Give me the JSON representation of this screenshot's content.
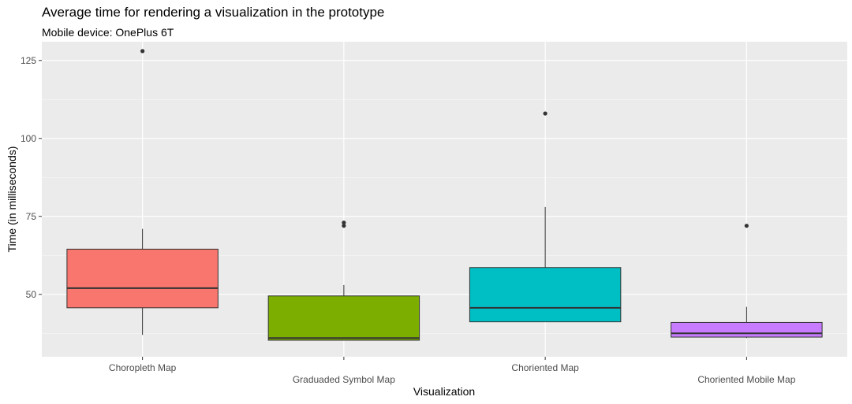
{
  "chart_data": {
    "type": "boxplot",
    "title": "Average time for rendering a visualization in the prototype",
    "subtitle": "Mobile device: OnePlus 6T",
    "xlabel": "Visualization",
    "ylabel": "Time (in milliseconds)",
    "ylim": [
      30,
      131
    ],
    "yticks": [
      50,
      75,
      100,
      125
    ],
    "grid": true,
    "legend": "none",
    "categories": [
      "Choropleth Map",
      "Graduaded Symbol Map",
      "Choriented Map",
      "Choriented Mobile Map"
    ],
    "boxes": [
      {
        "category": "Choropleth Map",
        "whisker_low": 37,
        "q1": 45.7,
        "median": 52,
        "q3": 64.5,
        "whisker_high": 71,
        "outliers": [
          128
        ],
        "color": "#F8766D"
      },
      {
        "category": "Graduaded Symbol Map",
        "whisker_low": 35.3,
        "q1": 35.3,
        "median": 36,
        "q3": 49.5,
        "whisker_high": 53,
        "outliers": [
          72,
          73
        ],
        "color": "#7CAE00"
      },
      {
        "category": "Choriented Map",
        "whisker_low": 41.2,
        "q1": 41.2,
        "median": 45.7,
        "q3": 58.6,
        "whisker_high": 78,
        "outliers": [
          108
        ],
        "color": "#00BFC4"
      },
      {
        "category": "Choriented Mobile Map",
        "whisker_low": 36,
        "q1": 36.3,
        "median": 37.5,
        "q3": 41,
        "whisker_high": 46,
        "outliers": [
          72
        ],
        "color": "#C77CFF"
      }
    ]
  }
}
